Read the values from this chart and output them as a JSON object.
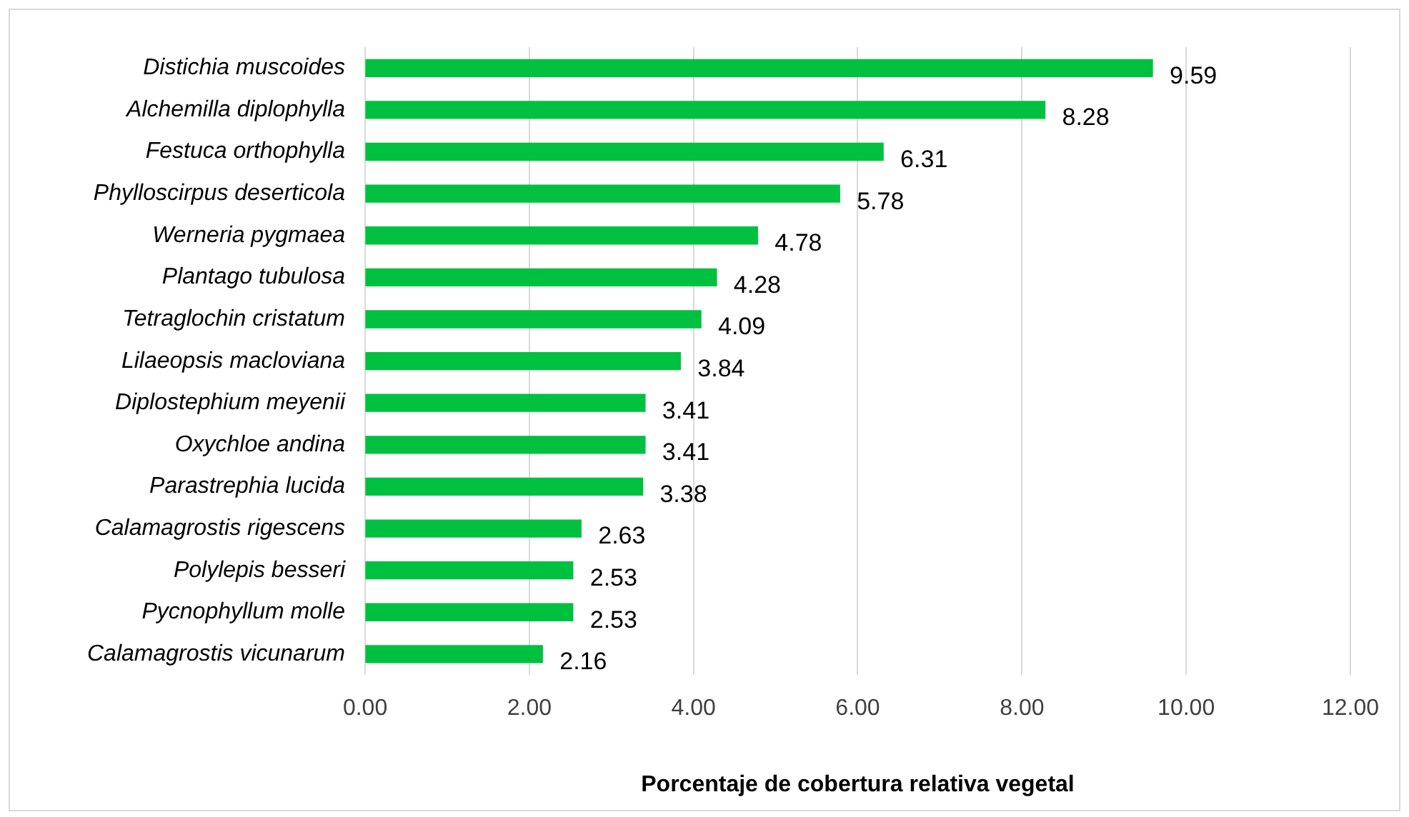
{
  "chart_data": {
    "type": "bar",
    "orientation": "horizontal",
    "xlabel": "Porcentaje de cobertura relativa vegetal",
    "categories": [
      "Distichia muscoides",
      "Alchemilla diplophylla",
      "Festuca orthophylla",
      "Phylloscirpus deserticola",
      "Werneria pygmaea",
      "Plantago tubulosa",
      "Tetraglochin cristatum",
      "Lilaeopsis macloviana",
      "Diplostephium meyenii",
      "Oxychloe andina",
      "Parastrephia lucida",
      "Calamagrostis rigescens",
      "Polylepis besseri",
      "Pycnophyllum molle",
      "Calamagrostis vicunarum"
    ],
    "values": [
      9.59,
      8.28,
      6.31,
      5.78,
      4.78,
      4.28,
      4.09,
      3.84,
      3.41,
      3.41,
      3.38,
      2.63,
      2.53,
      2.53,
      2.16
    ],
    "color": "#00c040",
    "xlim": [
      0,
      12
    ],
    "xticks": [
      {
        "value": 0,
        "label": "0.00"
      },
      {
        "value": 2,
        "label": "2.00"
      },
      {
        "value": 4,
        "label": "4.00"
      },
      {
        "value": 6,
        "label": "6.00"
      },
      {
        "value": 8,
        "label": "8.00"
      },
      {
        "value": 10,
        "label": "10.00"
      },
      {
        "value": 12,
        "label": "12.00"
      }
    ],
    "grid": "x",
    "data_labels": true
  }
}
